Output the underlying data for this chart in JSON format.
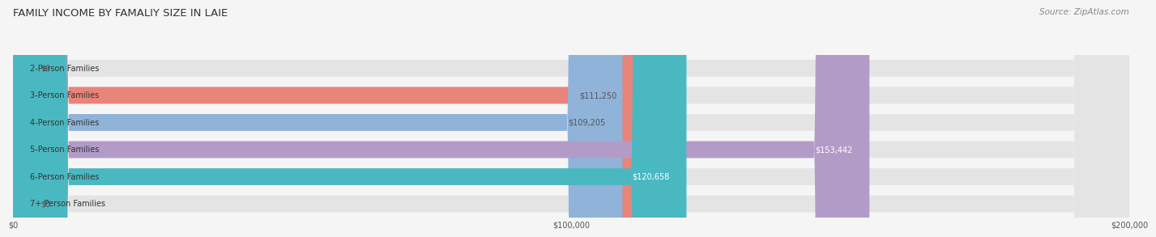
{
  "title": "FAMILY INCOME BY FAMALIY SIZE IN LAIE",
  "source": "Source: ZipAtlas.com",
  "categories": [
    "2-Person Families",
    "3-Person Families",
    "4-Person Families",
    "5-Person Families",
    "6-Person Families",
    "7+ Person Families"
  ],
  "values": [
    0,
    111250,
    109205,
    153442,
    120658,
    0
  ],
  "bar_colors": [
    "#f5c9a0",
    "#e8847a",
    "#8fb3d9",
    "#b39bc8",
    "#4ab8c1",
    "#c5cfe8"
  ],
  "label_colors": [
    "#555555",
    "#555555",
    "#555555",
    "#ffffff",
    "#ffffff",
    "#555555"
  ],
  "xmax": 200000,
  "xtick_labels": [
    "$0",
    "$100,000",
    "$200,000"
  ],
  "bar_height": 0.62,
  "background_color": "#f5f5f5",
  "bar_bg_color": "#e4e4e4",
  "title_fontsize": 9.5,
  "source_fontsize": 7.5,
  "label_fontsize": 7,
  "value_fontsize": 7,
  "category_fontsize": 7
}
